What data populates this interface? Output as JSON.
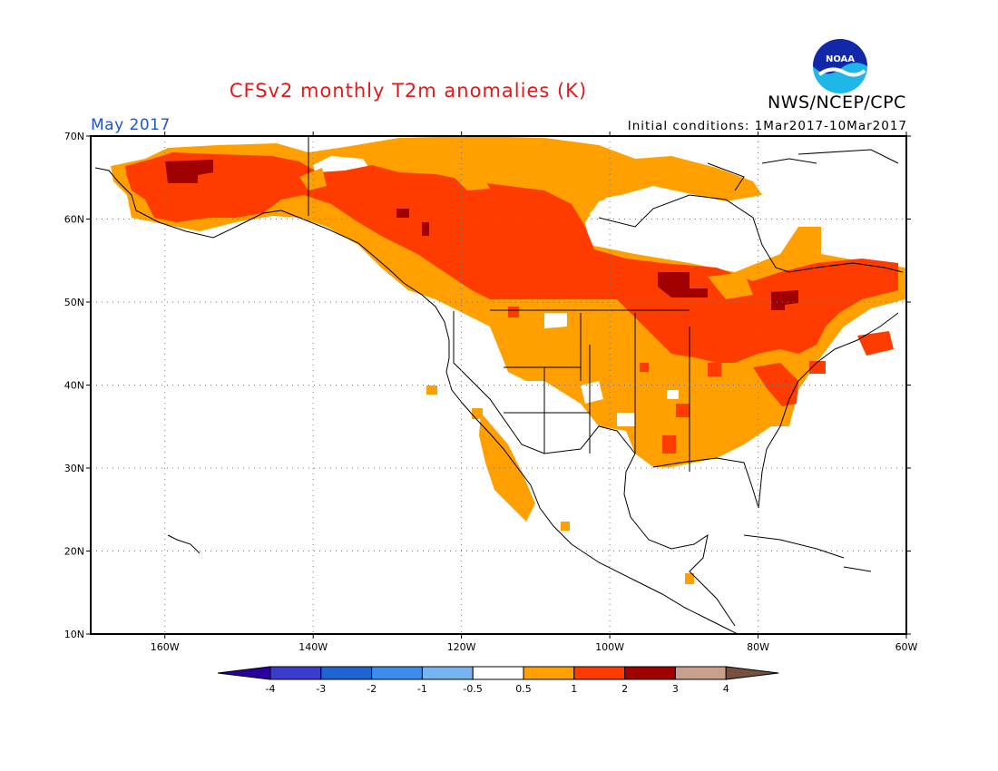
{
  "header": {
    "title": "CFSv2 monthly T2m anomalies (K)",
    "agency": "NWS/NCEP/CPC",
    "valid_month": "May 2017",
    "initial_conditions": "Initial conditions: 1Mar2017-10Mar2017",
    "logo_text": "NOAA"
  },
  "map": {
    "lat_labels": [
      "70N",
      "60N",
      "50N",
      "40N",
      "30N",
      "20N",
      "10N"
    ],
    "lon_labels": [
      "160W",
      "140W",
      "120W",
      "100W",
      "80W",
      "60W"
    ],
    "extent": {
      "lon_min": -170,
      "lon_max": -60,
      "lat_min": 10,
      "lat_max": 70
    }
  },
  "legend": {
    "colors": [
      "#2a00a0",
      "#3c3ccc",
      "#1e64d2",
      "#3c8cf0",
      "#78b4f0",
      "#ffffff",
      "#ffa000",
      "#ff3c00",
      "#a00000",
      "#c8a08c",
      "#785040"
    ],
    "tick_labels": [
      "-4",
      "-3",
      "-2",
      "-1",
      "-0.5",
      "0.5",
      "1",
      "2",
      "3",
      "4"
    ]
  },
  "anomaly_colors": {
    "warm1": "#ffa000",
    "warm2": "#ff3c00",
    "warm3": "#a00000"
  }
}
